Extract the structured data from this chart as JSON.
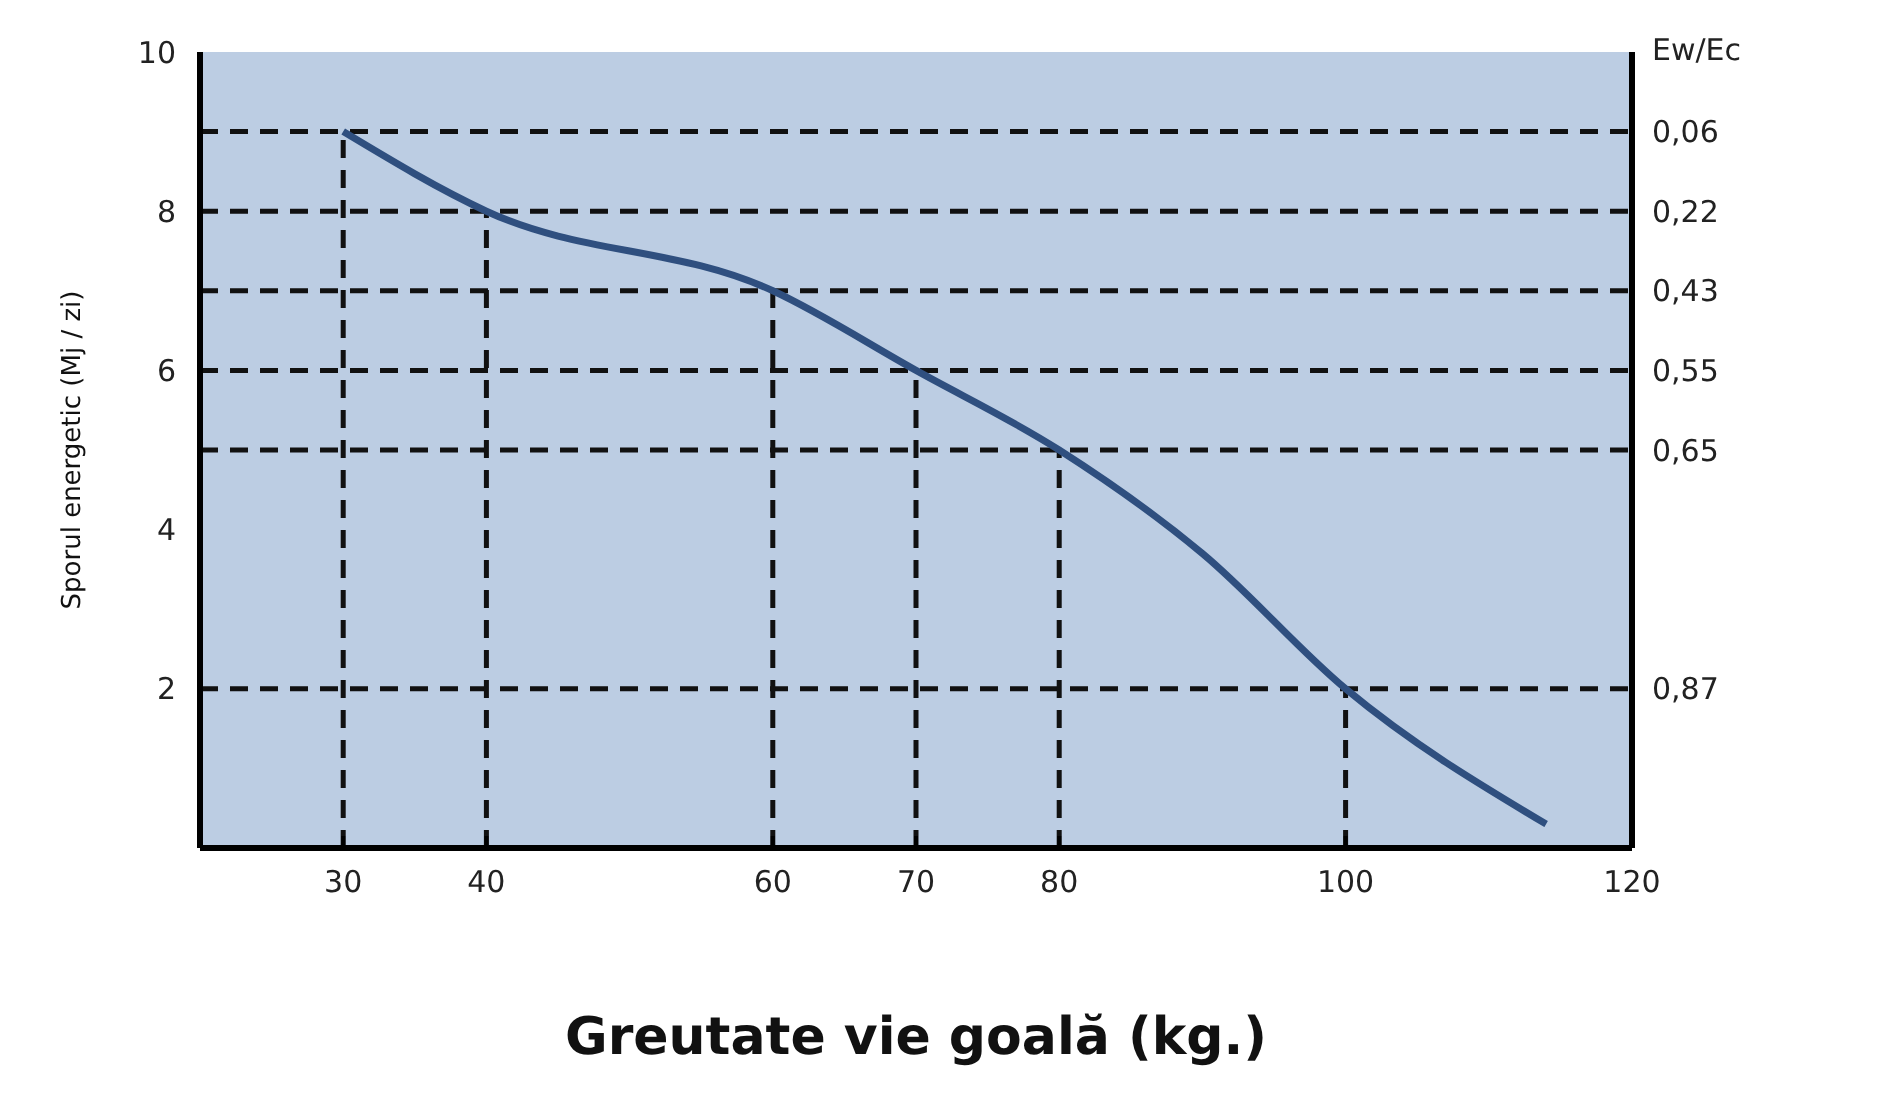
{
  "chart_data": {
    "type": "line",
    "xlabel": "Greutate vie goală (kg.)",
    "ylabel": "Sporul energetic (Mj / zi)",
    "annotations": [
      "Ew/Ec",
      "0,06",
      "0,22",
      "0,43",
      "0,55",
      "0,65",
      "0,87"
    ],
    "x": [
      30,
      40,
      60,
      70,
      80,
      90,
      100,
      114
    ],
    "series": [
      {
        "color": "#2f4f7f",
        "values": [
          9,
          8,
          7,
          6,
          5,
          3.7,
          2,
          0.3
        ]
      }
    ],
    "xlim": [
      20,
      120
    ],
    "xticks": [
      30,
      40,
      60,
      70,
      80,
      100,
      120
    ],
    "ylim": [
      0,
      10
    ],
    "yticks": [
      2,
      4,
      6,
      8,
      10
    ],
    "ref_lines": [
      {
        "axis": "y",
        "value": 9,
        "label": null,
        "line_style": "dashed"
      },
      {
        "axis": "y",
        "value": 8,
        "label": null,
        "line_style": "dashed"
      },
      {
        "axis": "y",
        "value": 7,
        "label": null,
        "line_style": "dashed"
      },
      {
        "axis": "y",
        "value": 6,
        "label": null,
        "line_style": "dashed"
      },
      {
        "axis": "y",
        "value": 5,
        "label": null,
        "line_style": "dashed"
      },
      {
        "axis": "y",
        "value": 2,
        "label": null,
        "line_style": "dashed"
      },
      {
        "axis": "x",
        "value": 30,
        "label": null,
        "line_style": "dashed"
      },
      {
        "axis": "x",
        "value": 40,
        "label": null,
        "line_style": "dashed"
      },
      {
        "axis": "x",
        "value": 60,
        "label": null,
        "line_style": "dashed"
      },
      {
        "axis": "x",
        "value": 70,
        "label": null,
        "line_style": "dashed"
      },
      {
        "axis": "x",
        "value": 80,
        "label": null,
        "line_style": "dashed"
      },
      {
        "axis": "x",
        "value": 100,
        "label": null,
        "line_style": "dashed"
      }
    ],
    "grid": false,
    "marker": "none",
    "line_style": "solid"
  }
}
